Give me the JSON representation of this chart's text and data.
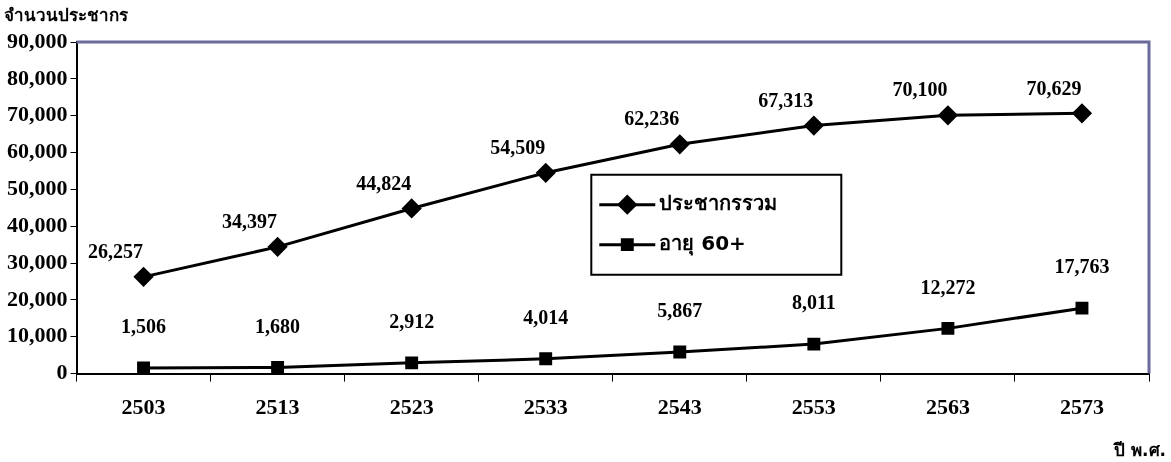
{
  "chart_data": {
    "type": "line",
    "ylabel": "จำนวนประชากร",
    "xlabel": "ปี พ.ศ.",
    "categories": [
      "2503",
      "2513",
      "2523",
      "2533",
      "2543",
      "2553",
      "2563",
      "2573"
    ],
    "series": [
      {
        "name": "ประชากรรวม",
        "color": "#000000",
        "marker": "diamond",
        "values": [
          26257,
          34397,
          44824,
          54509,
          62236,
          67313,
          70100,
          70629
        ],
        "value_labels": [
          "26,257",
          "34,397",
          "44,824",
          "54,509",
          "62,236",
          "67,313",
          "70,100",
          "70,629"
        ]
      },
      {
        "name": "อายุ 60+",
        "color": "#000000",
        "marker": "square",
        "values": [
          1506,
          1680,
          2912,
          4014,
          5867,
          8011,
          12272,
          17763
        ],
        "value_labels": [
          "1,506",
          "1,680",
          "2,912",
          "4,014",
          "5,867",
          "8,011",
          "12,272",
          "17,763"
        ]
      }
    ],
    "ylim": [
      0,
      90000
    ],
    "yticks": [
      {
        "value": 0,
        "label": "0"
      },
      {
        "value": 10000,
        "label": "10,000"
      },
      {
        "value": 20000,
        "label": "20,000"
      },
      {
        "value": 30000,
        "label": "30,000"
      },
      {
        "value": 40000,
        "label": "40,000"
      },
      {
        "value": 50000,
        "label": "50,000"
      },
      {
        "value": 60000,
        "label": "60,000"
      },
      {
        "value": 70000,
        "label": "70,000"
      },
      {
        "value": 80000,
        "label": "80,000"
      },
      {
        "value": 90000,
        "label": "90,000"
      }
    ],
    "grid": false,
    "legend": "center",
    "line_style": "solid"
  }
}
